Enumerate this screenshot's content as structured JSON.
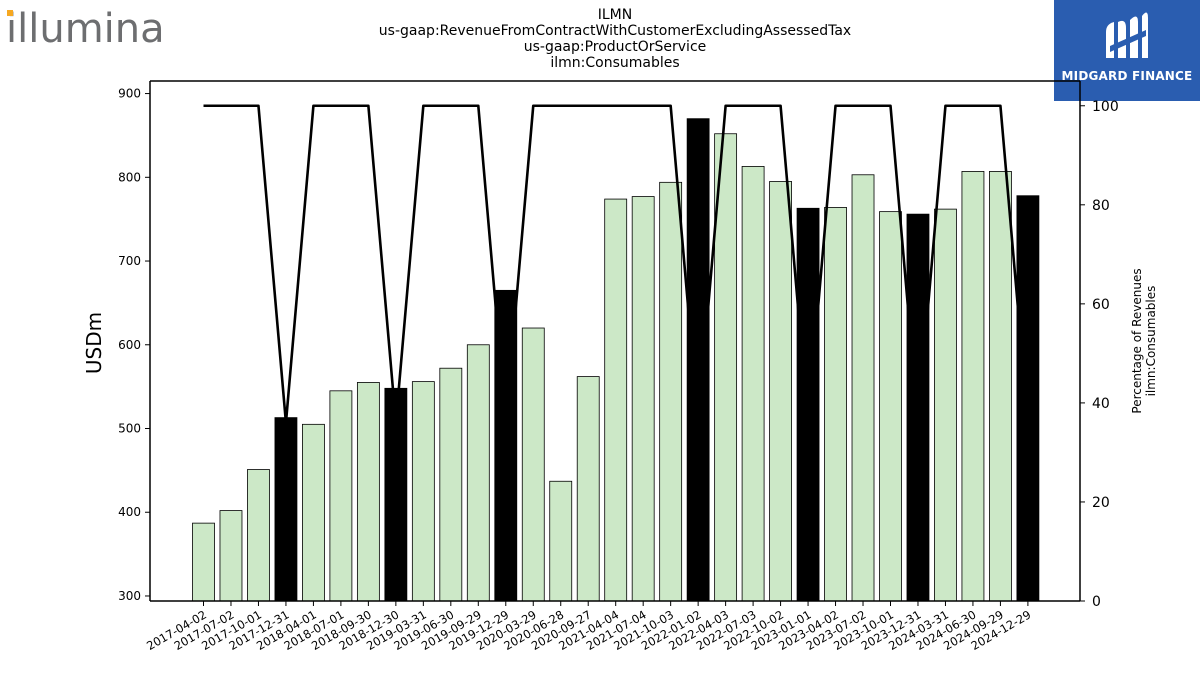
{
  "header": {
    "title_lines": [
      "ILMN",
      "us-gaap:RevenueFromContractWithCustomerExcludingAssessedTax",
      "us-gaap:ProductOrService",
      "ilmn:Consumables"
    ]
  },
  "logos": {
    "left_text": "illumina",
    "right_text": "MIDGARD FINANCE",
    "right_bg_color": "#2a5db0"
  },
  "chart_data": {
    "type": "bar",
    "ylabel": "USDm",
    "y2label_lines": [
      "Percentage of Revenues",
      "ilmn:Consumables"
    ],
    "ylim": [
      294,
      915
    ],
    "y2lim": [
      0,
      105
    ],
    "yticks": [
      300,
      400,
      500,
      600,
      700,
      800,
      900
    ],
    "y2ticks": [
      0,
      20,
      40,
      60,
      80,
      100
    ],
    "categories": [
      "2017-04-02",
      "2017-07-02",
      "2017-10-01",
      "2017-12-31",
      "2018-04-01",
      "2018-07-01",
      "2018-09-30",
      "2018-12-30",
      "2019-03-31",
      "2019-06-30",
      "2019-09-29",
      "2019-12-29",
      "2020-03-29",
      "2020-06-28",
      "2020-09-27",
      "2021-04-04",
      "2021-07-04",
      "2021-10-03",
      "2022-01-02",
      "2022-04-03",
      "2022-07-03",
      "2022-10-02",
      "2023-01-01",
      "2023-04-02",
      "2023-07-02",
      "2023-10-01",
      "2023-12-31",
      "2024-03-31",
      "2024-06-30",
      "2024-09-29",
      "2024-12-29"
    ],
    "values": [
      387,
      402,
      451,
      513,
      505,
      545,
      555,
      548,
      556,
      572,
      600,
      665,
      620,
      437,
      562,
      774,
      777,
      794,
      870,
      852,
      813,
      795,
      763,
      764,
      803,
      759,
      756,
      762,
      807,
      807,
      778
    ],
    "highlight": [
      false,
      false,
      false,
      true,
      false,
      false,
      false,
      true,
      false,
      false,
      false,
      true,
      false,
      false,
      false,
      false,
      false,
      false,
      true,
      false,
      false,
      false,
      true,
      false,
      false,
      false,
      true,
      false,
      false,
      false,
      true
    ],
    "line_series": {
      "values": [
        100,
        100,
        100,
        36,
        100,
        100,
        100,
        36,
        100,
        100,
        100,
        36,
        100,
        100,
        100,
        100,
        100,
        100,
        36,
        100,
        100,
        100,
        36,
        100,
        100,
        100,
        36,
        100,
        100,
        100,
        36
      ]
    },
    "colors": {
      "bar": "#cce8c7",
      "bar_highlight": "#000000",
      "bar_edge": "#000000",
      "line": "#000000"
    },
    "grid": false
  }
}
